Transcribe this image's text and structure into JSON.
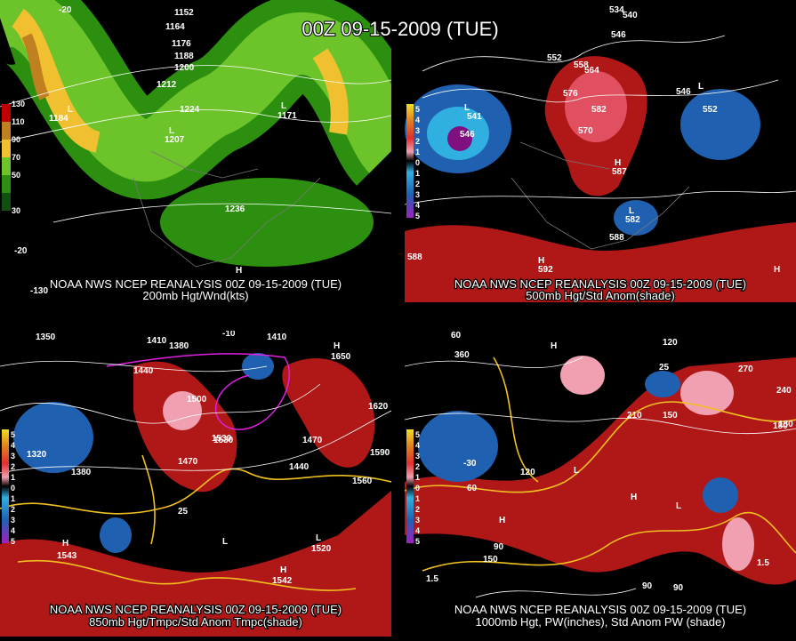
{
  "title": "00Z 09-15-2009 (TUE)",
  "panels": [
    {
      "caption": "NOAA NWS NCEP REANALYSIS 00Z 09-15-2009 (TUE)",
      "subtitle": "200mb Hgt/Wnd(kts)",
      "legend": [
        "130",
        "110",
        "90",
        "70",
        "50",
        "30"
      ],
      "labels": [
        "1152",
        "1164",
        "1176",
        "1188",
        "1200",
        "1212",
        "1224",
        "1236",
        "1184",
        "1207",
        "1171",
        "L",
        "L",
        "L",
        "H",
        "-20",
        "-20",
        "-130"
      ]
    },
    {
      "caption": "NOAA NWS NCEP REANALYSIS 00Z 09-15-2009 (TUE)",
      "subtitle": "500mb Hgt/Std Anom(shade)",
      "legend": [
        "5",
        "4",
        "3",
        "2",
        "1",
        "0",
        "1",
        "2",
        "3",
        "4",
        "5"
      ],
      "labels": [
        "534",
        "540",
        "546",
        "552",
        "558",
        "564",
        "570",
        "576",
        "582",
        "588",
        "541",
        "546",
        "552",
        "546",
        "582",
        "587",
        "592",
        "588",
        "L",
        "L",
        "L",
        "H",
        "H",
        "H"
      ]
    },
    {
      "caption": "NOAA NWS NCEP REANALYSIS 00Z 09-15-2009 (TUE)",
      "subtitle": "850mb Hgt/Tmpc/Std Anom Tmpc(shade)",
      "legend": [
        "5",
        "4",
        "3",
        "2",
        "1",
        "0",
        "1",
        "2",
        "3",
        "4",
        "5"
      ],
      "labels": [
        "1350",
        "1380",
        "1410",
        "1440",
        "1470",
        "1500",
        "1530",
        "1560",
        "1590",
        "1620",
        "1650",
        "1320",
        "1380",
        "1410",
        "1440",
        "1470",
        "1530",
        "-10",
        "25",
        "H",
        "H",
        "L",
        "L",
        "H",
        "1543",
        "1520",
        "1542"
      ]
    },
    {
      "caption": "NOAA NWS NCEP REANALYSIS 00Z 09-15-2009 (TUE)",
      "subtitle": "1000mb Hgt, PW(inches), Std Anom PW (shade)",
      "legend": [
        "5",
        "4",
        "3",
        "2",
        "1",
        "0",
        "1",
        "2",
        "3",
        "4",
        "5"
      ],
      "labels": [
        "60",
        "360",
        "120",
        "150",
        "210",
        "180",
        "240",
        "270",
        "-30",
        "60",
        "90",
        "120",
        "150",
        "90",
        "1.5",
        "1.5",
        "25",
        "H",
        "H",
        "L",
        "L",
        "H",
        "90",
        "180"
      ]
    }
  ]
}
